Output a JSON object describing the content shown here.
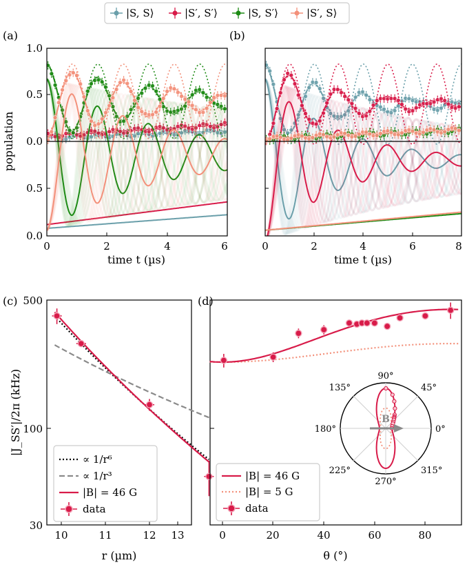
{
  "colors": {
    "SS": "#6a9faa",
    "SpSp": "#d81b49",
    "SSp": "#1c8a14",
    "SpS": "#f3907a",
    "B5": "#f3907a",
    "arrow": "#8a8a8a"
  },
  "top_legend": [
    {
      "key": "SS",
      "label": "|S, S⟩"
    },
    {
      "key": "SpSp",
      "label": "|S′, S′⟩"
    },
    {
      "key": "SSp",
      "label": "|S, S′⟩"
    },
    {
      "key": "SpS",
      "label": "|S′, S⟩"
    }
  ],
  "panel_labels": {
    "a": "(a)",
    "b": "(b)",
    "c": "(c)",
    "d": "(d)"
  },
  "ab_ylabel": "population",
  "ab_xlabel": "time t (µs)",
  "c_xlabel": "r (µm)",
  "c_ylabel": "|J_SS′|/2π (kHz)",
  "d_xlabel": "θ (°)",
  "ticks": {
    "a_x": [
      "0",
      "2",
      "4",
      "6"
    ],
    "b_x": [
      "0",
      "2",
      "4",
      "6",
      "8"
    ],
    "ab_y_top": [
      "0.0",
      "0.5",
      "1.0"
    ],
    "ab_y_bot": [
      "0.0",
      "0.5"
    ],
    "c_x": [
      "10",
      "11",
      "12",
      "13"
    ],
    "c_y": [
      "30",
      "100",
      "500"
    ],
    "d_x": [
      "0",
      "20",
      "40",
      "60",
      "80"
    ]
  },
  "legend_c": [
    {
      "label": "∝ 1/r⁶"
    },
    {
      "label": "∝ 1/r³"
    },
    {
      "label": "|B| = 46 G"
    },
    {
      "label": "data"
    }
  ],
  "legend_d": [
    {
      "label": "|B| = 46 G"
    },
    {
      "label": "|B| = 5 G"
    },
    {
      "label": "data"
    }
  ],
  "polar_labels": [
    "90°",
    "45°",
    "0°",
    "315°",
    "270°",
    "225°",
    "180°",
    "135°"
  ],
  "polar_B": "B",
  "chart_data": [
    {
      "id": "a",
      "type": "line",
      "xlabel": "time t (µs)",
      "ylabel": "population",
      "xlim": [
        0,
        6
      ],
      "ylim_top": [
        0,
        1
      ],
      "ylim_bottom": [
        0,
        0.85
      ],
      "series": [
        {
          "name": "|S, S⟩",
          "model": {
            "c": 0.04,
            "a": 0,
            "s": 0.012
          }
        },
        {
          "name": "|S′, S′⟩",
          "model": {
            "c": 0.06,
            "a": 0,
            "s": 0.02
          }
        },
        {
          "name": "|S, S′⟩",
          "model": {
            "c": 0.43,
            "a": 0.4,
            "f": 0.59,
            "phase": 0,
            "tau": 3.8
          }
        },
        {
          "name": "|S′, S⟩",
          "model": {
            "c": 0.43,
            "a": -0.4,
            "f": 0.59,
            "phase": 0,
            "tau": 3.8
          }
        }
      ]
    },
    {
      "id": "b",
      "type": "line",
      "xlabel": "time t (µs)",
      "ylabel": "population",
      "xlim": [
        0,
        8
      ],
      "ylim_top": [
        0,
        1
      ],
      "ylim_bottom": [
        0,
        0.85
      ],
      "series": [
        {
          "name": "|S, S⟩",
          "model": {
            "c": 0.4,
            "a": 0.43,
            "f": 0.5,
            "phase": 0,
            "tau": 3.0
          }
        },
        {
          "name": "|S′, S′⟩",
          "model": {
            "c": 0.4,
            "a": -0.43,
            "f": 0.5,
            "phase": 0,
            "tau": 3.0
          }
        },
        {
          "name": "|S, S′⟩",
          "model": {
            "c": 0.03,
            "a": 0,
            "s": 0.011
          }
        },
        {
          "name": "|S′, S⟩",
          "model": {
            "c": 0.03,
            "a": 0,
            "s": 0.012
          }
        }
      ]
    },
    {
      "id": "c",
      "type": "scatter",
      "xlabel": "r (µm)",
      "ylabel": "|J_SS′|/2π (kHz)",
      "xlim": [
        9.6,
        13.5
      ],
      "ylim": [
        30,
        500
      ],
      "yscale": "log",
      "data": {
        "x": [
          9.9,
          10.45,
          12.0,
          13.35
        ],
        "y": [
          410,
          290,
          135,
          55
        ],
        "err": [
          40,
          10,
          10,
          12
        ]
      },
      "lines": [
        {
          "name": "∝ 1/r⁶",
          "x": [
            9.85,
            13.35
          ],
          "y": [
            410,
            68
          ]
        },
        {
          "name": "∝ 1/r³",
          "x": [
            9.85,
            13.35
          ],
          "y": [
            285,
            115
          ]
        },
        {
          "name": "|B| = 46 G",
          "x": [
            9.85,
            13.35
          ],
          "y": [
            430,
            66
          ]
        }
      ]
    },
    {
      "id": "d",
      "type": "scatter",
      "xlabel": "θ (°)",
      "xlim": [
        -5,
        93
      ],
      "ylim": [
        30,
        500
      ],
      "yscale": "log",
      "data": {
        "x": [
          0.5,
          20,
          30,
          40,
          50,
          53,
          55,
          57,
          60,
          65,
          70,
          80,
          90
        ],
        "y": [
          235,
          245,
          330,
          345,
          375,
          370,
          375,
          375,
          375,
          360,
          400,
          410,
          440
        ],
        "err": [
          20,
          15,
          20,
          20,
          15,
          15,
          15,
          15,
          15,
          15,
          15,
          15,
          45
        ]
      },
      "lines": [
        {
          "name": "|B| = 46 G",
          "theta_fn": "230+215*sin^2(theta)"
        },
        {
          "name": "|B| = 5 G",
          "theta_fn": "230+60*sin^2(theta)"
        }
      ]
    }
  ]
}
